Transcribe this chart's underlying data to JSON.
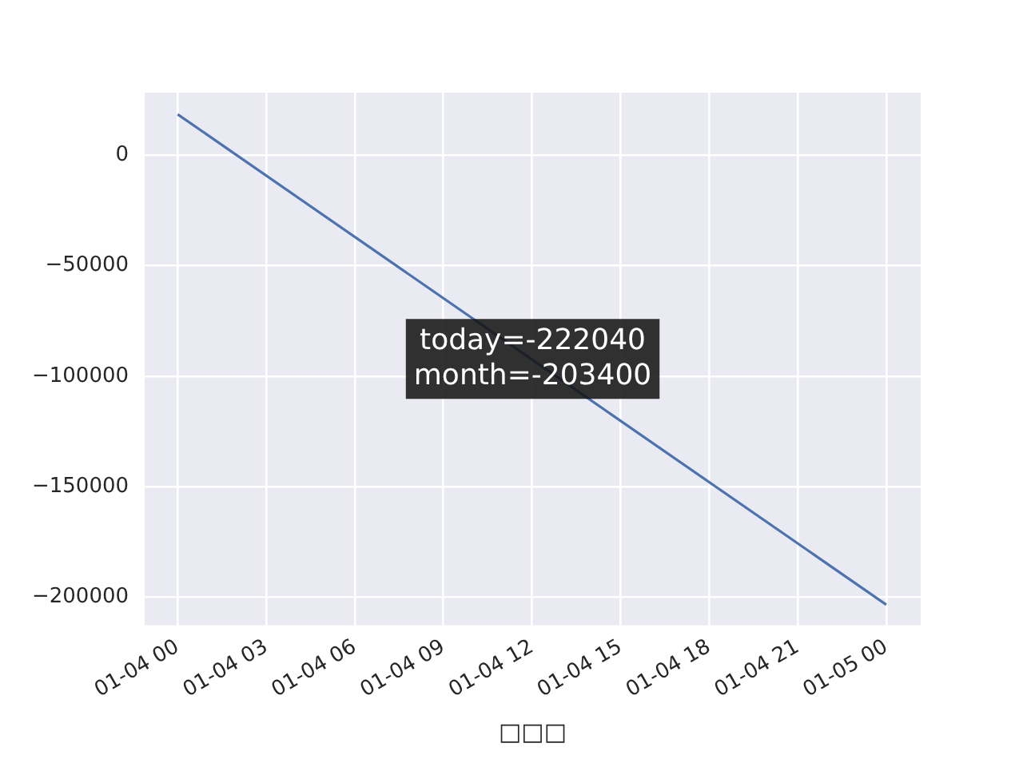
{
  "chart_data": {
    "type": "line",
    "xlabel": "□□□",
    "x": [
      "--01-04T00:00",
      "--01-05T00:00"
    ],
    "series": [
      {
        "color": "#4c72b0",
        "values": [
          18600,
          -203400
        ]
      }
    ],
    "xlim": [
      "--01-03T22:53",
      "--01-05T01:10"
    ],
    "xticks": [
      {
        "value": "--01-04T00:00",
        "label": "01-04 00"
      },
      {
        "value": "--01-04T03:00",
        "label": "01-04 03"
      },
      {
        "value": "--01-04T06:00",
        "label": "01-04 06"
      },
      {
        "value": "--01-04T09:00",
        "label": "01-04 09"
      },
      {
        "value": "--01-04T12:00",
        "label": "01-04 12"
      },
      {
        "value": "--01-04T15:00",
        "label": "01-04 15"
      },
      {
        "value": "--01-04T18:00",
        "label": "01-04 18"
      },
      {
        "value": "--01-04T21:00",
        "label": "01-04 21"
      },
      {
        "value": "--01-05T00:00",
        "label": "01-05 00"
      }
    ],
    "ylim": [
      -212700,
      28400
    ],
    "yticks": [
      {
        "value": -200000,
        "label": "−200000"
      },
      {
        "value": -150000,
        "label": "−150000"
      },
      {
        "value": -100000,
        "label": "−100000"
      },
      {
        "value": -50000,
        "label": "−50000"
      },
      {
        "value": 0,
        "label": "0"
      }
    ],
    "grid": true,
    "legend": false,
    "marker": "none",
    "line_style": "solid",
    "annotations": [
      "today=-222040\nmonth=-203400"
    ]
  }
}
